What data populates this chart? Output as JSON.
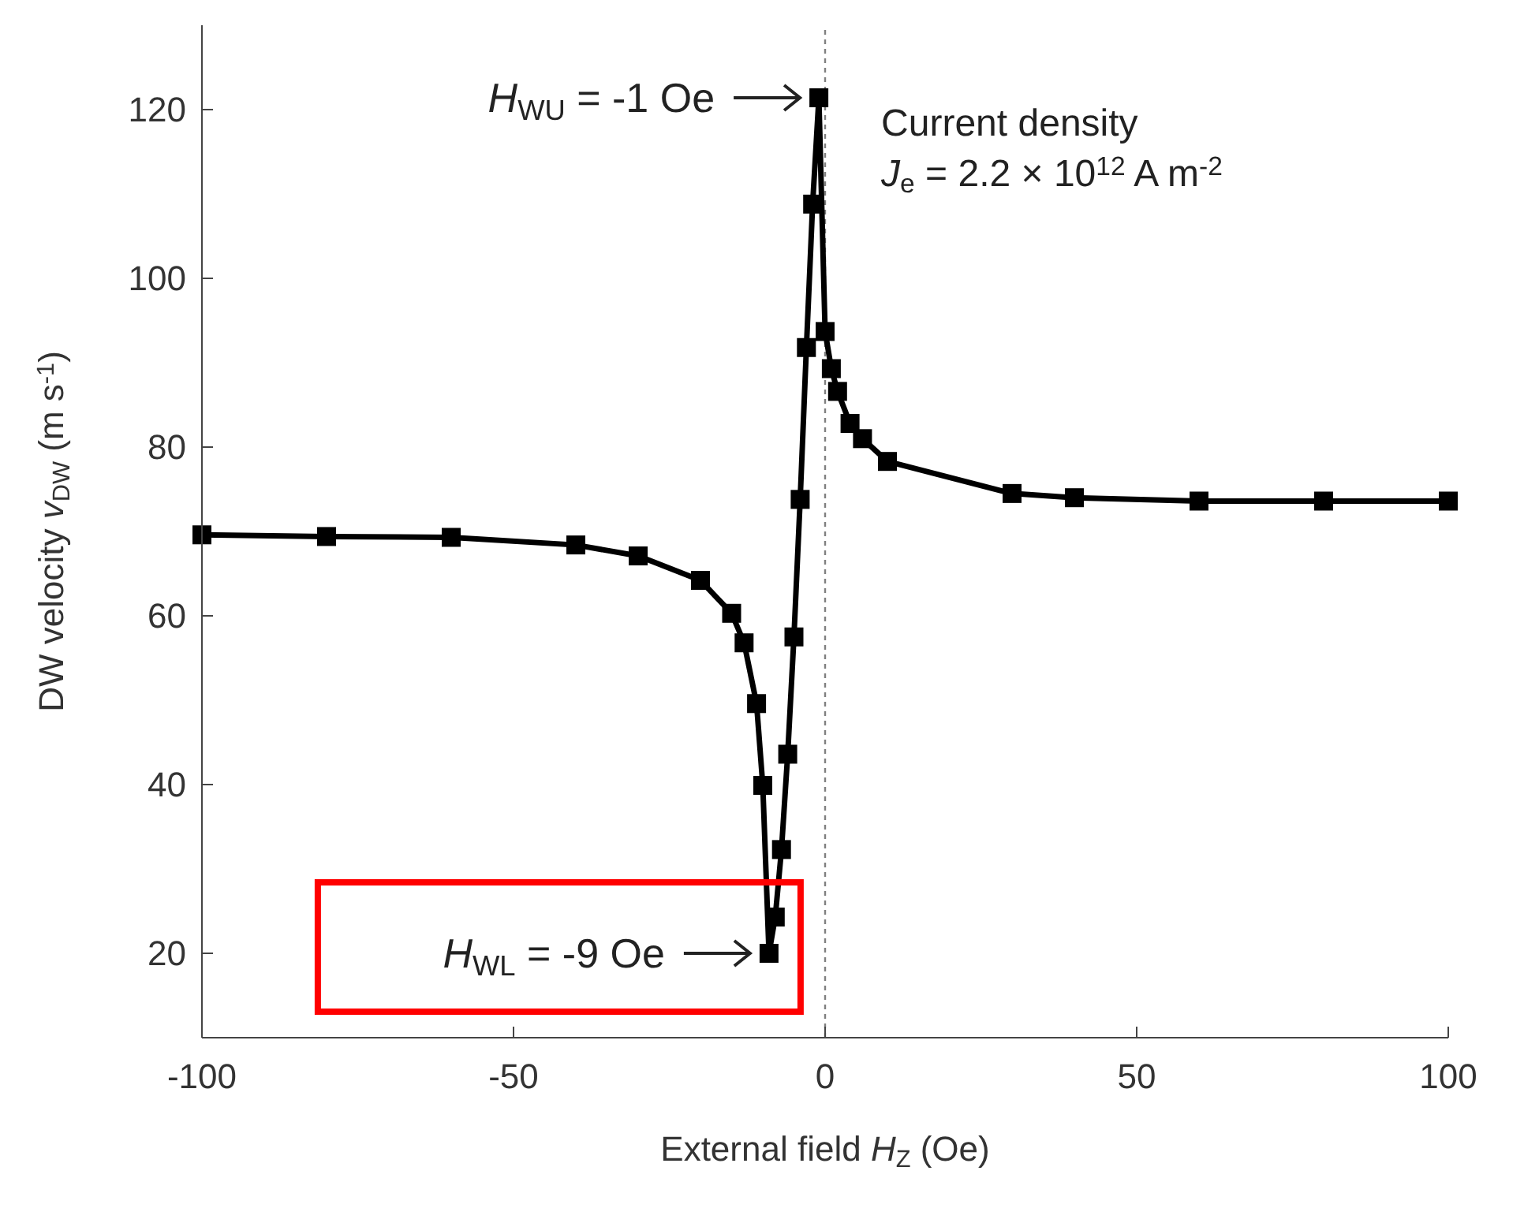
{
  "chart_data": {
    "type": "line",
    "xlabel": "External field H$_{Z}$ (Oe)",
    "ylabel": "DW velocity v$_{DW}$ (m s$^{-1}$)",
    "x": [
      -100,
      -80,
      -60,
      -40,
      -30,
      -20,
      -15,
      -13,
      -11,
      -10,
      -9,
      -8,
      -7,
      -6,
      -5,
      -4,
      -3,
      -2,
      -1,
      0,
      1,
      2,
      4,
      6,
      10,
      30,
      40,
      60,
      80,
      100
    ],
    "series": [
      {
        "color": "#000000",
        "values": [
          69.6,
          69.4,
          69.3,
          68.4,
          67.1,
          64.2,
          60.3,
          56.8,
          49.6,
          39.9,
          20,
          24.3,
          32.3,
          43.6,
          57.5,
          73.8,
          91.8,
          108.8,
          121.4,
          93.7,
          89.3,
          86.6,
          82.8,
          81.0,
          78.3,
          74.5,
          74.0,
          73.6,
          73.6,
          73.6
        ]
      }
    ],
    "marker": "square",
    "line_style": "solid",
    "xlim": [
      -100,
      100
    ],
    "xticks": [
      -100,
      -50,
      0,
      50,
      100
    ],
    "ylim": [
      10,
      130
    ],
    "yticks": [
      20,
      40,
      60,
      80,
      100,
      120
    ],
    "ref_lines": [
      {
        "axis": "x",
        "value": 0,
        "color": "#808080",
        "line_style": "dotted"
      }
    ],
    "annotations": [
      {
        "text": "H$_{WU}$ = -1 Oe",
        "x": -1,
        "y": 121.4
      },
      {
        "text": "H$_{WL}$ = -9 Oe",
        "x": -9,
        "y": 20
      },
      "Current density",
      "J$_{e}$ = 2.2 × 10$^{12}$ A m$^{-2}$"
    ]
  }
}
